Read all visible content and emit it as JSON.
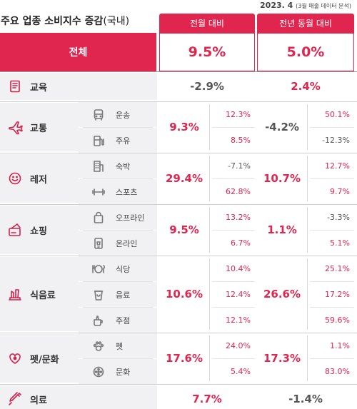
{
  "date": {
    "main": "2023. 4",
    "note": "(3월 매출 데이터 분석)"
  },
  "title": {
    "main": "주요 업종 소비지수 증감",
    "suffix": "(국내)"
  },
  "headers": {
    "mom": "전월 대비",
    "yoy": "전년 동월 대비"
  },
  "total": {
    "label": "전체",
    "mom": "9.5%",
    "yoy": "5.0%"
  },
  "colors": {
    "accent": "#e0254f",
    "negative": "#555555",
    "panel": "#f1f1f3"
  },
  "categories": [
    {
      "key": "edu",
      "label": "교육",
      "icon": "book-icon",
      "mom": "-2.9%",
      "yoy": "2.4%",
      "subs": []
    },
    {
      "key": "transport",
      "label": "교통",
      "icon": "airplane-icon",
      "mom": "9.3%",
      "yoy": "-4.2%",
      "subs": [
        {
          "label": "운송",
          "icon": "bus-icon",
          "mom": "12.3%",
          "yoy": "50.1%"
        },
        {
          "label": "주유",
          "icon": "gas-pump-icon",
          "mom": "8.5%",
          "yoy": "-12.3%"
        }
      ]
    },
    {
      "key": "leisure",
      "label": "레저",
      "icon": "smile-icon",
      "mom": "29.4%",
      "yoy": "10.7%",
      "subs": [
        {
          "label": "숙박",
          "icon": "building-icon",
          "mom": "-7.1%",
          "yoy": "12.7%"
        },
        {
          "label": "스포츠",
          "icon": "dumbbell-icon",
          "mom": "62.8%",
          "yoy": "9.7%"
        }
      ]
    },
    {
      "key": "shopping",
      "label": "쇼핑",
      "icon": "card-icon",
      "mom": "9.5%",
      "yoy": "1.1%",
      "subs": [
        {
          "label": "오프라인",
          "icon": "shopping-bag-icon",
          "mom": "13.2%",
          "yoy": "-3.3%"
        },
        {
          "label": "온라인",
          "icon": "mobile-shop-icon",
          "mom": "6.7%",
          "yoy": "5.1%"
        }
      ]
    },
    {
      "key": "food",
      "label": "식음료",
      "icon": "food-icon",
      "mom": "10.6%",
      "yoy": "26.6%",
      "subs": [
        {
          "label": "식당",
          "icon": "plate-icon",
          "mom": "10.4%",
          "yoy": "25.1%"
        },
        {
          "label": "음료",
          "icon": "cup-icon",
          "mom": "12.4%",
          "yoy": "17.2%"
        },
        {
          "label": "주점",
          "icon": "drink-icon",
          "mom": "12.1%",
          "yoy": "59.6%"
        }
      ]
    },
    {
      "key": "pet",
      "label": "펫/문화",
      "icon": "paw-heart-icon",
      "mom": "17.6%",
      "yoy": "17.3%",
      "subs": [
        {
          "label": "펫",
          "icon": "paw-icon",
          "mom": "24.0%",
          "yoy": "1.1%"
        },
        {
          "label": "문화",
          "icon": "film-icon",
          "mom": "5.4%",
          "yoy": "83.0%"
        }
      ]
    },
    {
      "key": "medical",
      "label": "의료",
      "icon": "syringe-icon",
      "mom": "7.7%",
      "yoy": "-1.4%",
      "subs": []
    }
  ]
}
